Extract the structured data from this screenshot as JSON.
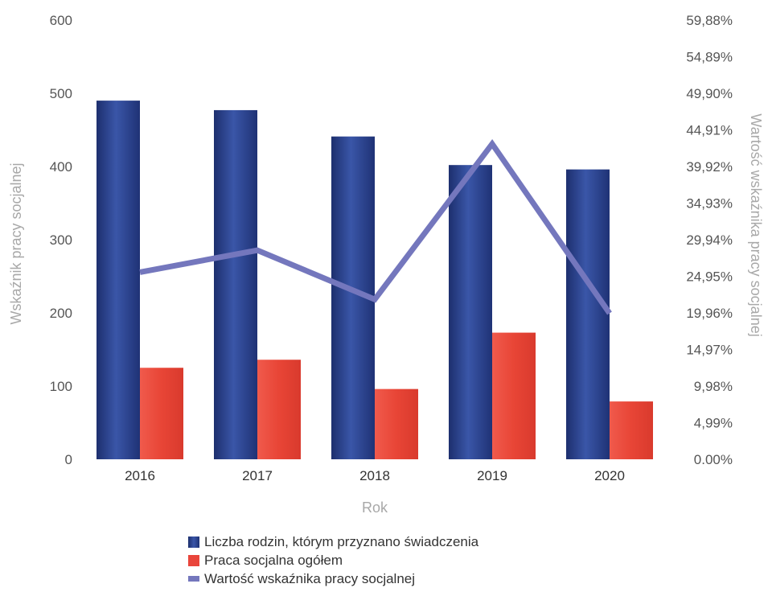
{
  "chart_data": {
    "type": "bar",
    "categories": [
      "2016",
      "2017",
      "2018",
      "2019",
      "2020"
    ],
    "series": [
      {
        "name": "Liczba rodzin, którym przyznano świadczenia",
        "type": "bar",
        "axis": "left",
        "color": "#2c4593",
        "values": [
          490,
          477,
          441,
          402,
          396
        ]
      },
      {
        "name": "Praca socjalna ogółem",
        "type": "bar",
        "axis": "left",
        "color": "#e9453b",
        "values": [
          125,
          136,
          96,
          173,
          79
        ]
      },
      {
        "name": "Wartość wskaźnika pracy socjalnej",
        "type": "line",
        "axis": "right",
        "color": "#7477bd",
        "values": [
          25.5,
          28.5,
          21.8,
          43.0,
          19.9
        ]
      }
    ],
    "xlabel": "Rok",
    "ylabel": "Wskaźnik pracy socjalnej",
    "ylabel_right": "Wartość wskaźnika pracy socjalnej",
    "ylim": [
      0,
      600
    ],
    "ylim_right": [
      0,
      59.88
    ],
    "yticks": [
      "0",
      "100",
      "200",
      "300",
      "400",
      "500",
      "600"
    ],
    "yticks_right": [
      "0.00%",
      "4,99%",
      "9,98%",
      "14,97%",
      "19,96%",
      "24,95%",
      "29,94%",
      "34,93%",
      "39,92%",
      "44,91%",
      "49,90%",
      "54,89%",
      "59,88%"
    ],
    "grid": false,
    "legend_position": "bottom"
  }
}
